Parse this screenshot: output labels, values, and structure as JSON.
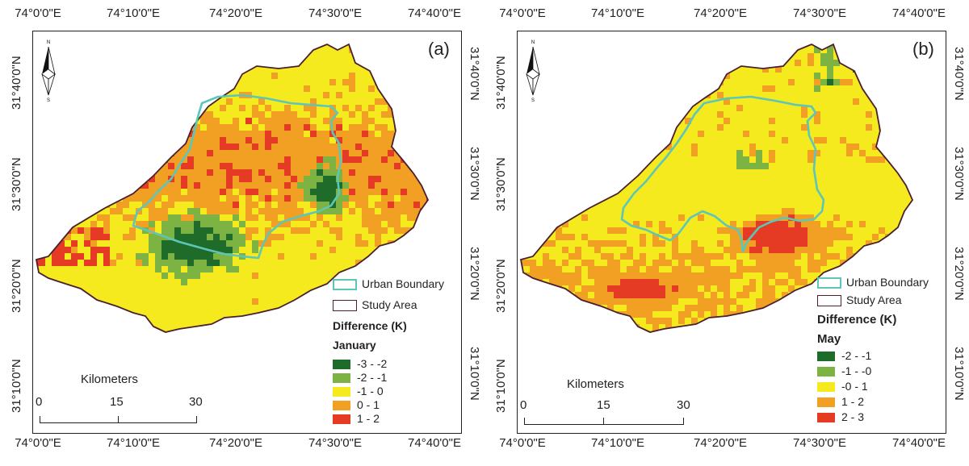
{
  "panels": [
    {
      "id": "a",
      "label": "(a)",
      "month": "January",
      "classes": [
        {
          "range": "-3 - -2",
          "color": "#1f6b2a"
        },
        {
          "range": "-2 - -1",
          "color": "#7cb342"
        },
        {
          "range": "-1 - 0",
          "color": "#f4ea1e"
        },
        {
          "range": "0 - 1",
          "color": "#f2a024"
        },
        {
          "range": "1 - 2",
          "color": "#e53a24"
        }
      ]
    },
    {
      "id": "b",
      "label": "(b)",
      "month": "May",
      "classes": [
        {
          "range": "-2 - -1",
          "color": "#1f6b2a"
        },
        {
          "range": "-1 - -0",
          "color": "#7cb342"
        },
        {
          "range": "-0 - 1",
          "color": "#f4ea1e"
        },
        {
          "range": "1 - 2",
          "color": "#f2a024"
        },
        {
          "range": "2 - 3",
          "color": "#e53a24"
        }
      ]
    }
  ],
  "axes": {
    "x_ticks": [
      "74°0'0\"E",
      "74°10'0\"E",
      "74°20'0\"E",
      "74°30'0\"E",
      "74°40'0\"E"
    ],
    "y_ticks": [
      "31°40'0\"N",
      "31°30'0\"N",
      "31°20'0\"N",
      "31°10'0\"N"
    ]
  },
  "legend": {
    "urban_boundary": "Urban Boundary",
    "study_area": "Study Area",
    "difference_title": "Difference (K)",
    "urban_color": "#5cc6b8",
    "study_color": "#4a1f2e"
  },
  "scale_bar": {
    "title": "Kilometers",
    "labels": [
      "0",
      "15",
      "30"
    ]
  },
  "north_arrow": {
    "n": "N",
    "s": "S"
  }
}
